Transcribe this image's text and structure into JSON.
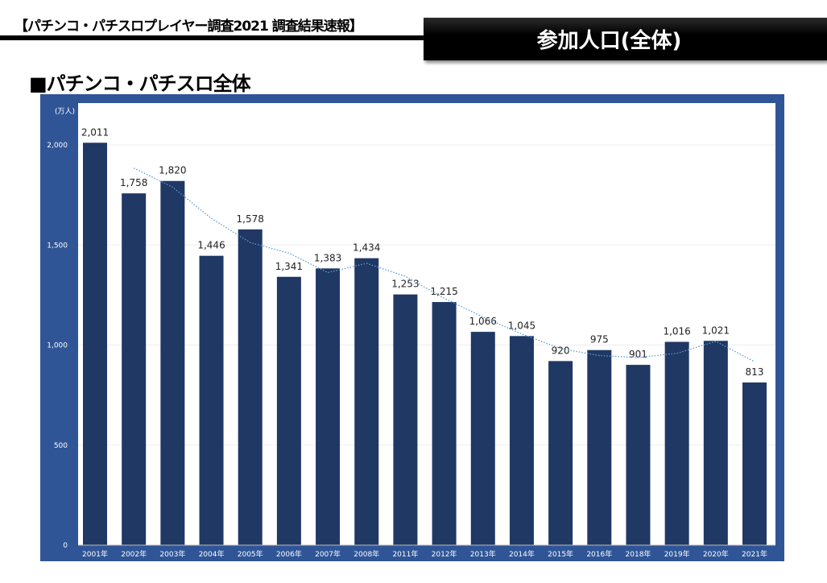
{
  "header": {
    "title": "【パチンコ・パチスロプレイヤー調査2021 調査結果速報】",
    "badge": "参加人口(全体)"
  },
  "section_title": "■パチンコ・パチスロ全体",
  "chart_data": {
    "type": "bar",
    "title": "パチンコ・パチスロ全体",
    "ylabel": "(万人)",
    "ylim": [
      0,
      2000
    ],
    "yticks": [
      "0",
      "500",
      "1,000",
      "1,500",
      "2,000"
    ],
    "ytick_values": [
      0,
      500,
      1000,
      1500,
      2000
    ],
    "categories": [
      "2001年",
      "2002年",
      "2003年",
      "2004年",
      "2005年",
      "2006年",
      "2007年",
      "2008年",
      "2011年",
      "2012年",
      "2013年",
      "2014年",
      "2015年",
      "2016年",
      "2018年",
      "2019年",
      "2020年",
      "2021年"
    ],
    "values": [
      2011,
      1758,
      1820,
      1446,
      1578,
      1341,
      1383,
      1434,
      1253,
      1215,
      1066,
      1045,
      920,
      975,
      901,
      1016,
      1021,
      813
    ],
    "labels": [
      "2,011",
      "1,758",
      "1,820",
      "1,446",
      "1,578",
      "1,341",
      "1,383",
      "1,434",
      "1,253",
      "1,215",
      "1,066",
      "1,045",
      "920",
      "975",
      "901",
      "1,016",
      "1,021",
      "813"
    ],
    "trendline": "2-period moving average",
    "grid": true,
    "colors": {
      "bar": "#203864",
      "frame": "#2f5597",
      "trend": "#5b9bd5"
    }
  }
}
